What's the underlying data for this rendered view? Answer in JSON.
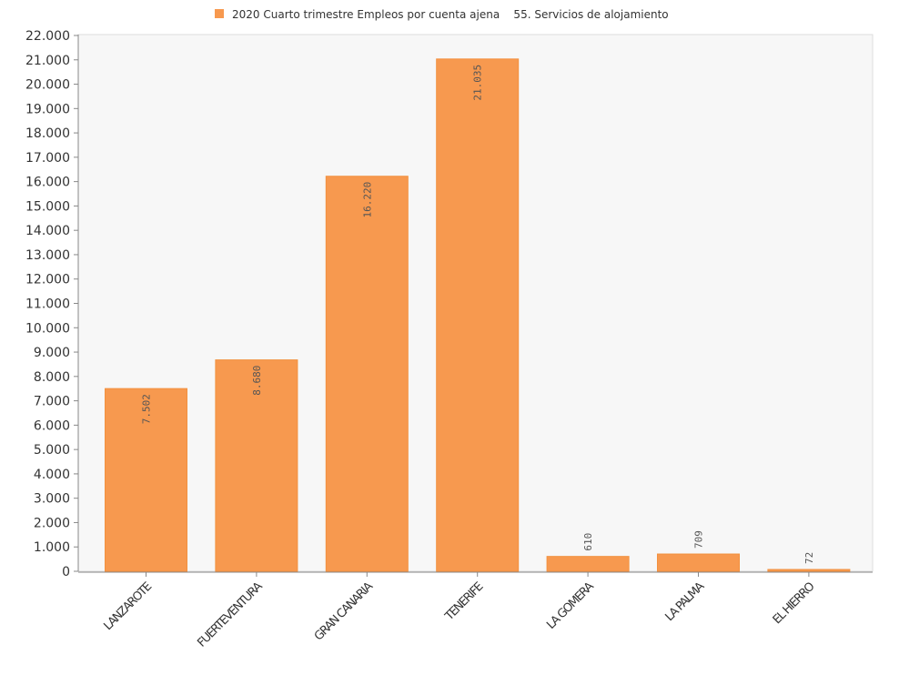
{
  "legend": {
    "label": "2020 Cuarto trimestre Empleos por cuenta ajena    55. Servicios de alojamiento"
  },
  "colors": {
    "bar": "#f7994f",
    "bar_stroke": "#f2913f",
    "plot_background": "#f7f7f7",
    "axis": "#888888",
    "plot_border": "#dddddd"
  },
  "chart_data": {
    "type": "bar",
    "categories": [
      "LANZAROTE",
      "FUERTEVENTURA",
      "GRAN CANARIA",
      "TENERIFE",
      "LA GOMERA",
      "LA PALMA",
      "EL HIERRO"
    ],
    "series": [
      {
        "name": "2020 Cuarto trimestre Empleos por cuenta ajena    55. Servicios de alojamiento",
        "values": [
          7502,
          8680,
          16220,
          21035,
          610,
          709,
          72
        ],
        "labels": [
          "7.502",
          "8.680",
          "16.220",
          "21.035",
          "610",
          "709",
          "72"
        ]
      }
    ],
    "yticks": [
      "0",
      "1.000",
      "2.000",
      "3.000",
      "4.000",
      "5.000",
      "6.000",
      "7.000",
      "8.000",
      "9.000",
      "10.000",
      "11.000",
      "12.000",
      "13.000",
      "14.000",
      "15.000",
      "16.000",
      "17.000",
      "18.000",
      "19.000",
      "20.000",
      "21.000",
      "22.000"
    ],
    "ylim": [
      0,
      22000
    ],
    "ystep": 1000,
    "grid": false,
    "legend_position": "top-center",
    "title": "",
    "xlabel": "",
    "ylabel": ""
  }
}
